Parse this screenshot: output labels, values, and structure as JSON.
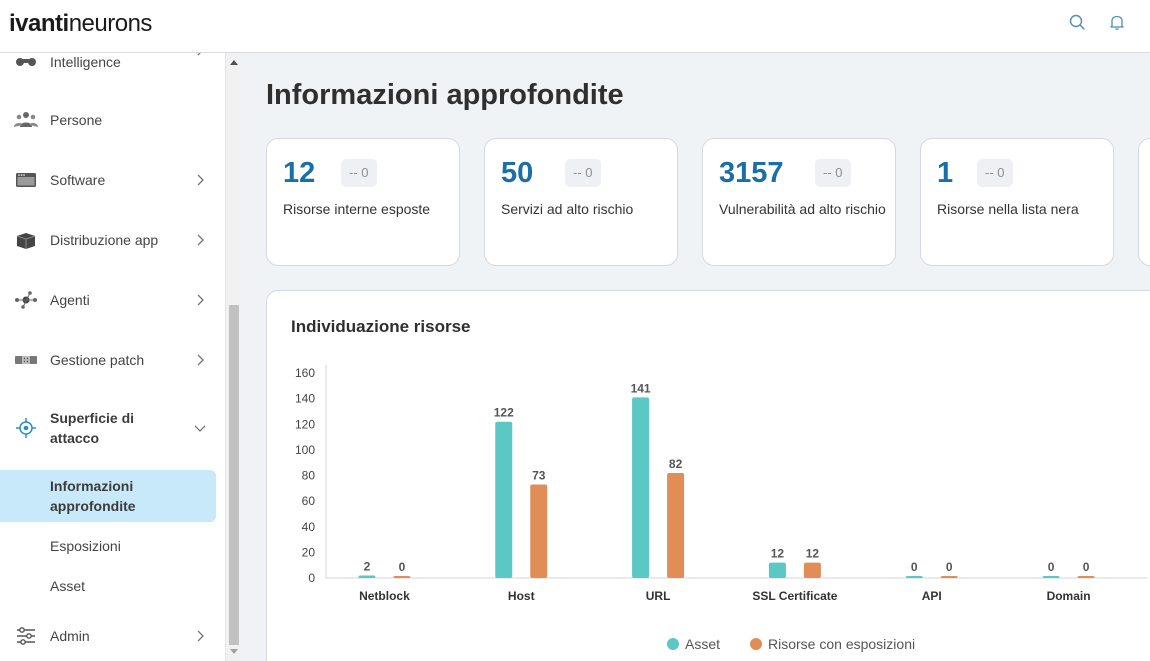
{
  "header": {
    "logo_ivanti": "ivanti",
    "logo_neurons": "neurons"
  },
  "sidebar": {
    "items": [
      {
        "label": "Intelligence",
        "icon": "binoculars-icon",
        "has_chevron": true
      },
      {
        "label": "Persone",
        "icon": "people-icon",
        "has_chevron": false
      },
      {
        "label": "Software",
        "icon": "software-window-icon",
        "has_chevron": true
      },
      {
        "label": "Distribuzione app",
        "icon": "box-icon",
        "has_chevron": true
      },
      {
        "label": "Agenti",
        "icon": "agents-network-icon",
        "has_chevron": true
      },
      {
        "label": "Gestione patch",
        "icon": "patch-icon",
        "has_chevron": true
      },
      {
        "label_line1": "Superficie di",
        "label_line2": "attacco",
        "icon": "target-icon",
        "expanded": true
      }
    ],
    "subitems": [
      {
        "label_line1": "Informazioni",
        "label_line2": "approfondite",
        "active": true
      },
      {
        "label": "Esposizioni"
      },
      {
        "label": "Asset"
      }
    ],
    "admin": {
      "label": "Admin",
      "icon": "sliders-icon"
    }
  },
  "main": {
    "title": "Informazioni approfondite",
    "stats": [
      {
        "value": "12",
        "delta": "-- 0",
        "label": "Risorse interne esposte"
      },
      {
        "value": "50",
        "delta": "-- 0",
        "label": "Servizi ad alto rischio"
      },
      {
        "value": "3157",
        "delta": "-- 0",
        "label": "Vulnerabilità ad alto rischio"
      },
      {
        "value": "1",
        "delta": "-- 0",
        "label": "Risorse nella lista nera"
      }
    ]
  },
  "chart_data": {
    "type": "bar",
    "title": "Individuazione risorse",
    "categories": [
      "Netblock",
      "Host",
      "URL",
      "SSL Certificate",
      "API",
      "Domain"
    ],
    "series": [
      {
        "name": "Asset",
        "values": [
          2,
          122,
          141,
          12,
          0,
          0
        ],
        "color": "#5bc8c6"
      },
      {
        "name": "Risorse con esposizioni",
        "values": [
          0,
          73,
          82,
          12,
          0,
          0
        ],
        "color": "#e08e55"
      }
    ],
    "yticks": [
      "0",
      "20",
      "40",
      "60",
      "80",
      "100",
      "120",
      "140",
      "160"
    ],
    "ylim": [
      0,
      160
    ],
    "legend": "bottom"
  }
}
